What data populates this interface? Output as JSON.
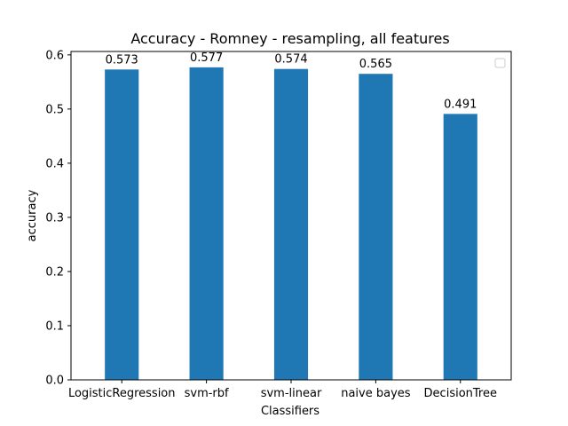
{
  "chart_data": {
    "type": "bar",
    "title": "Accuracy - Romney - resampling, all features",
    "xlabel": "Classifiers",
    "ylabel": "accuracy",
    "categories": [
      "LogisticRegression",
      "svm-rbf",
      "svm-linear",
      "naive bayes",
      "DecisionTree"
    ],
    "values": [
      0.573,
      0.577,
      0.574,
      0.565,
      0.491
    ],
    "data_labels": [
      "0.573",
      "0.577",
      "0.574",
      "0.565",
      "0.491"
    ],
    "ylim": [
      0,
      0.6063
    ],
    "yticks": [
      0.0,
      0.1,
      0.2,
      0.3,
      0.4,
      0.5,
      0.6
    ],
    "ytick_labels": [
      "0.0",
      "0.1",
      "0.2",
      "0.3",
      "0.4",
      "0.5",
      "0.6"
    ],
    "bar_color": "#1f77b4",
    "grid": false,
    "legend": "upper right (empty)"
  }
}
